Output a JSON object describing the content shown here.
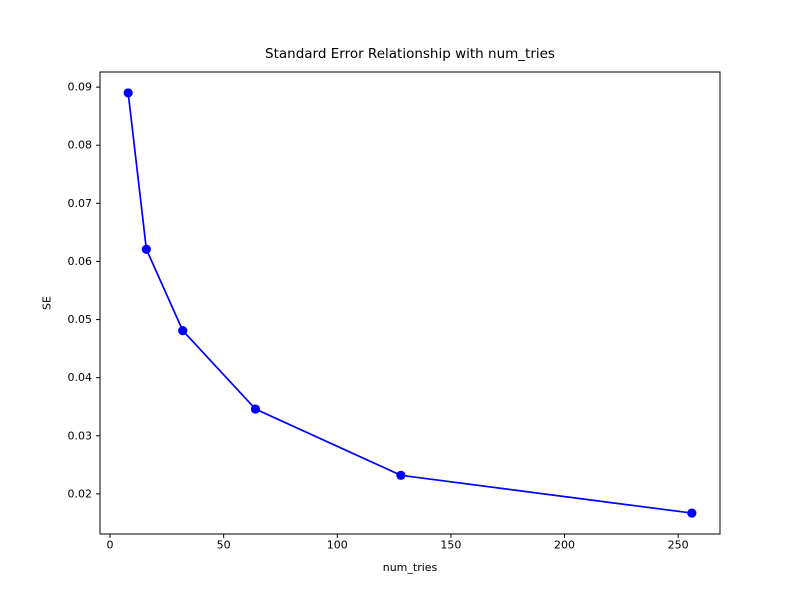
{
  "chart_data": {
    "type": "line",
    "title": "Standard Error Relationship with num_tries",
    "xlabel": "num_tries",
    "ylabel": "SE",
    "series": [
      {
        "name": "SE",
        "x": [
          8,
          16,
          32,
          64,
          128,
          256
        ],
        "y": [
          0.089,
          0.0621,
          0.0481,
          0.0346,
          0.0232,
          0.0167
        ]
      }
    ],
    "xticks": [
      0,
      50,
      100,
      150,
      200,
      250
    ],
    "yticks": [
      0.02,
      0.03,
      0.04,
      0.05,
      0.06,
      0.07,
      0.08,
      0.09
    ],
    "ytick_decimals": 2,
    "xlim": [
      -4.4,
      268.4
    ],
    "ylim": [
      0.0131,
      0.0926
    ],
    "grid": false,
    "legend": "none",
    "marker": "circle",
    "colors": {
      "line": "#0000ff",
      "marker": "#0000ff",
      "spine": "#000000",
      "text": "#000000",
      "background": "#ffffff"
    }
  }
}
